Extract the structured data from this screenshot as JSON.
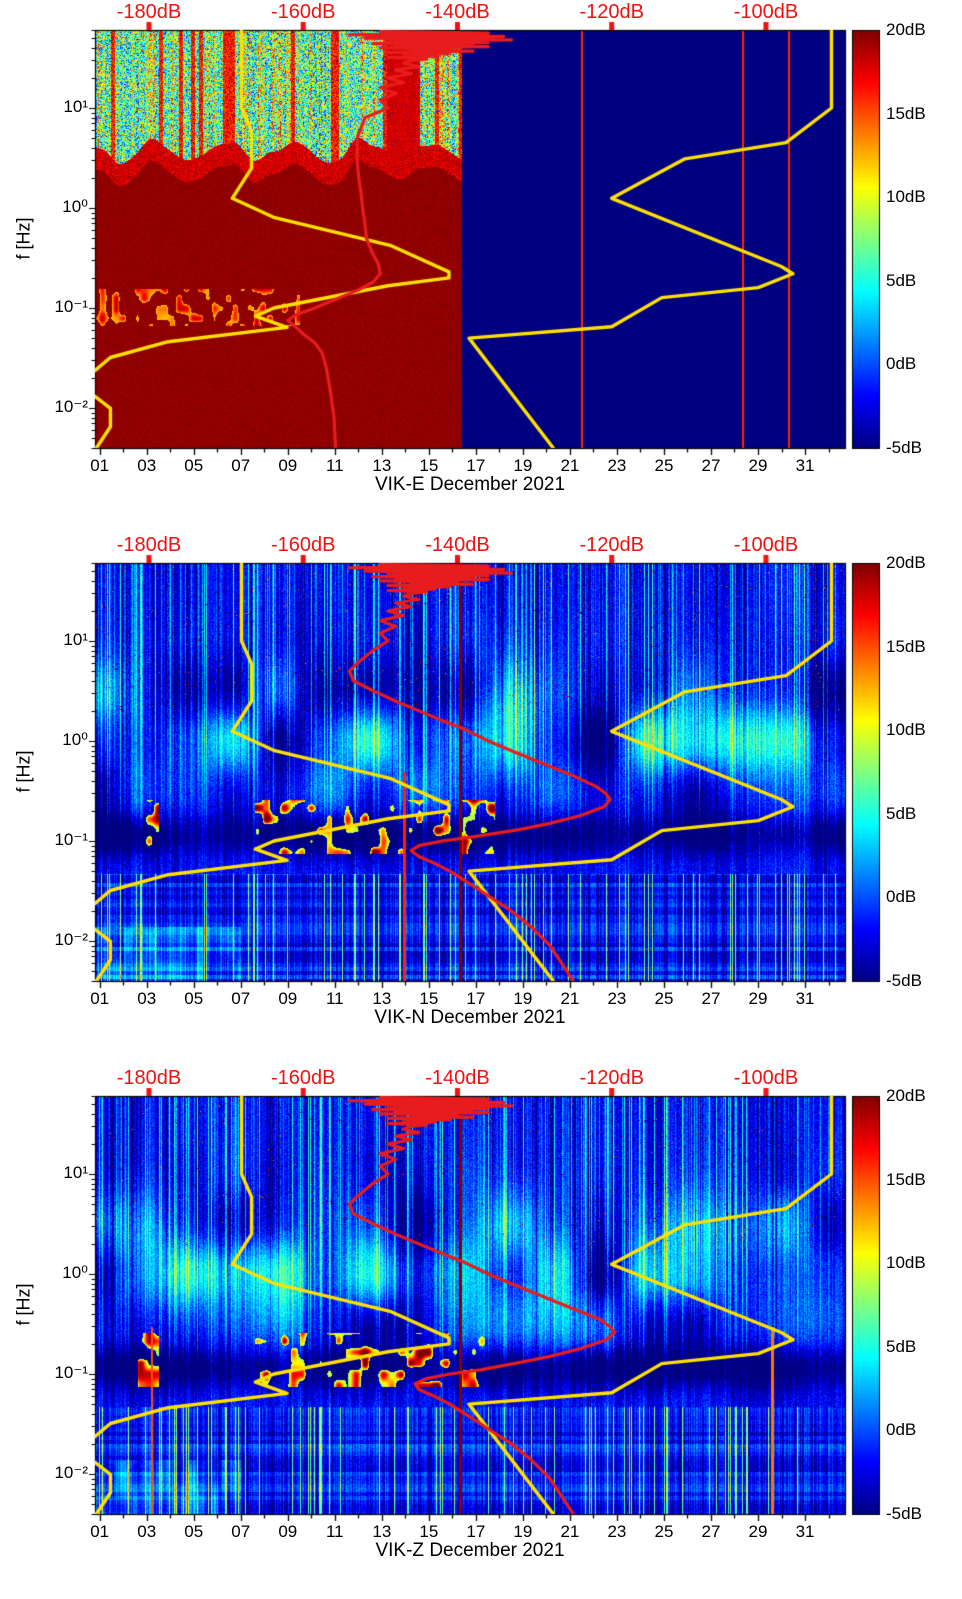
{
  "chart_data": {
    "type": "heatmap",
    "description": "Seismic power spectral density spectrograms (probability-density style) for station VIK, three components, with Peterson NLNM/NHNM reference curves (yellow) and station median PSD (red) plotted against the top dB axis.",
    "panels": [
      {
        "station": "VIK-E",
        "xlabel": "VIK-E December 2021",
        "style": "clipped",
        "seed": 11,
        "split_day": 16.38,
        "thin_lines": [
          {
            "day": 21.5,
            "db": 16
          },
          {
            "day": 28.35,
            "db": 16
          },
          {
            "day": 30.3,
            "db": 16
          }
        ]
      },
      {
        "station": "VIK-N",
        "xlabel": "VIK-N December 2021",
        "style": "quiet",
        "seed": 22,
        "thin_lines": [
          {
            "day": 16.33,
            "db": 20
          },
          {
            "day": 13.95,
            "db": 16,
            "fmax": 0.5
          }
        ]
      },
      {
        "station": "VIK-Z",
        "xlabel": "VIK-Z December 2021",
        "style": "quiet",
        "seed": 33,
        "thin_lines": [
          {
            "day": 16.33,
            "db": 20
          },
          {
            "day": 3.2,
            "db": 15,
            "fmax": 0.3
          },
          {
            "day": 29.6,
            "db": 14,
            "fmax": 0.3
          }
        ]
      }
    ],
    "x_axis": {
      "unit": "day of month (December 2021)",
      "range": [
        0.8,
        32.7
      ],
      "tick_days": [
        1,
        3,
        5,
        7,
        9,
        11,
        13,
        15,
        17,
        19,
        21,
        23,
        25,
        27,
        29,
        31
      ],
      "tick_labels": [
        "01",
        "03",
        "05",
        "07",
        "09",
        "11",
        "13",
        "15",
        "17",
        "19",
        "21",
        "23",
        "25",
        "27",
        "29",
        "31"
      ]
    },
    "y_axis": {
      "label": "f [Hz]",
      "unit": "Hz",
      "scale": "log",
      "log_range": [
        -2.4,
        1.78
      ],
      "tick_values": [
        10,
        1,
        0.1,
        0.01
      ],
      "tick_labels": [
        "10¹",
        "10⁰",
        "10⁻¹",
        "10⁻²"
      ]
    },
    "top_axis": {
      "unit": "dB (PSD rel. 1 (m/s²)²/Hz)",
      "range": [
        -187,
        -89.75
      ],
      "text_color": "#f01212",
      "tick_values": [
        -180,
        -160,
        -140,
        -120,
        -100
      ],
      "tick_labels": [
        "-180dB",
        "-160dB",
        "-140dB",
        "-120dB",
        "-100dB"
      ]
    },
    "colorbar": {
      "colormap": "jet",
      "range": [
        -5,
        20
      ],
      "tick_values": [
        20,
        15,
        10,
        5,
        0,
        -5
      ],
      "tick_labels": [
        "20dB",
        "15dB",
        "10dB",
        "5dB",
        "0dB",
        "-5dB"
      ]
    },
    "overlays": {
      "nlnm": {
        "name": "Peterson New Low Noise Model",
        "color": "#ffe100",
        "points": [
          [
            60,
            -168
          ],
          [
            10,
            -168
          ],
          [
            5.9,
            -166.7
          ],
          [
            2.5,
            -166.7
          ],
          [
            1.25,
            -169.2
          ],
          [
            0.8,
            -163.7
          ],
          [
            0.42,
            -148.6
          ],
          [
            0.23,
            -141.1
          ],
          [
            0.2,
            -141.1
          ],
          [
            0.167,
            -149
          ],
          [
            0.1,
            -163.8
          ],
          [
            0.083,
            -166.2
          ],
          [
            0.064,
            -162.1
          ],
          [
            0.046,
            -177.5
          ],
          [
            0.032,
            -185
          ],
          [
            0.022,
            -187.5
          ],
          [
            0.014,
            -187.5
          ],
          [
            0.0099,
            -185
          ],
          [
            0.0065,
            -185
          ],
          [
            0.004,
            -186.8
          ]
        ]
      },
      "nhnm": {
        "name": "Peterson New High Noise Model",
        "color": "#ffe100",
        "points": [
          [
            60,
            -91.5
          ],
          [
            10,
            -91.5
          ],
          [
            4.5,
            -97.4
          ],
          [
            3.1,
            -110.5
          ],
          [
            1.25,
            -120
          ],
          [
            0.26,
            -98
          ],
          [
            0.22,
            -96.5
          ],
          [
            0.16,
            -101
          ],
          [
            0.127,
            -113.5
          ],
          [
            0.065,
            -120
          ],
          [
            0.05,
            -138.5
          ],
          [
            0.004,
            -127.6
          ]
        ]
      },
      "median_color": "#e81c1c",
      "median_scribble": [
        [
          58,
          -150
        ],
        [
          56,
          -136
        ],
        [
          54,
          -154
        ],
        [
          52,
          -134
        ],
        [
          50,
          -152
        ],
        [
          48,
          -133
        ],
        [
          46,
          -149
        ],
        [
          45,
          -136
        ],
        [
          44,
          -151
        ],
        [
          43,
          -138
        ],
        [
          42,
          -148
        ],
        [
          41,
          -136
        ],
        [
          40,
          -150
        ],
        [
          39,
          -140
        ],
        [
          38,
          -146
        ],
        [
          37,
          -138
        ],
        [
          36,
          -149
        ],
        [
          35,
          -141
        ],
        [
          34,
          -147
        ],
        [
          33,
          -143
        ],
        [
          32,
          -149
        ],
        [
          31,
          -144
        ],
        [
          30,
          -146
        ],
        [
          28,
          -147
        ],
        [
          26,
          -145
        ],
        [
          24,
          -148
        ],
        [
          22,
          -146
        ],
        [
          20,
          -149
        ],
        [
          18,
          -147
        ],
        [
          16,
          -150
        ],
        [
          14,
          -148
        ],
        [
          12,
          -150
        ],
        [
          10,
          -149
        ]
      ],
      "medians": {
        "VIK-E": [
          [
            8,
            -152
          ],
          [
            5,
            -153
          ],
          [
            3,
            -153
          ],
          [
            2,
            -152.8
          ],
          [
            1.4,
            -152.5
          ],
          [
            1,
            -152.3
          ],
          [
            0.7,
            -152
          ],
          [
            0.5,
            -151.8
          ],
          [
            0.35,
            -151
          ],
          [
            0.28,
            -150.3
          ],
          [
            0.22,
            -150
          ],
          [
            0.18,
            -151
          ],
          [
            0.15,
            -153
          ],
          [
            0.12,
            -156
          ],
          [
            0.1,
            -158.5
          ],
          [
            0.085,
            -161
          ],
          [
            0.075,
            -162
          ],
          [
            0.065,
            -161
          ],
          [
            0.055,
            -160
          ],
          [
            0.045,
            -158.5
          ],
          [
            0.035,
            -157.5
          ],
          [
            0.025,
            -157
          ],
          [
            0.015,
            -156.5
          ],
          [
            0.008,
            -156
          ],
          [
            0.004,
            -155.8
          ]
        ],
        "VIK-N": [
          [
            8,
            -151
          ],
          [
            6,
            -153
          ],
          [
            5,
            -154
          ],
          [
            4,
            -153.5
          ],
          [
            3.2,
            -151
          ],
          [
            2.5,
            -148
          ],
          [
            2,
            -145
          ],
          [
            1.6,
            -142
          ],
          [
            1.3,
            -139
          ],
          [
            1,
            -136
          ],
          [
            0.8,
            -133
          ],
          [
            0.6,
            -129
          ],
          [
            0.45,
            -125
          ],
          [
            0.35,
            -122
          ],
          [
            0.3,
            -120.8
          ],
          [
            0.26,
            -120.2
          ],
          [
            0.22,
            -121
          ],
          [
            0.18,
            -124
          ],
          [
            0.15,
            -128
          ],
          [
            0.13,
            -132
          ],
          [
            0.11,
            -138
          ],
          [
            0.1,
            -142
          ],
          [
            0.09,
            -145
          ],
          [
            0.08,
            -146
          ],
          [
            0.07,
            -145
          ],
          [
            0.06,
            -143
          ],
          [
            0.05,
            -141
          ],
          [
            0.04,
            -139
          ],
          [
            0.03,
            -136.5
          ],
          [
            0.02,
            -133
          ],
          [
            0.014,
            -130.5
          ],
          [
            0.009,
            -128
          ],
          [
            0.006,
            -126.5
          ],
          [
            0.004,
            -125
          ]
        ],
        "VIK-Z": [
          [
            8,
            -151
          ],
          [
            6,
            -153
          ],
          [
            5,
            -154
          ],
          [
            4,
            -153.5
          ],
          [
            3.2,
            -151
          ],
          [
            2.5,
            -148
          ],
          [
            2,
            -145
          ],
          [
            1.6,
            -142
          ],
          [
            1.3,
            -139
          ],
          [
            1,
            -136
          ],
          [
            0.8,
            -133
          ],
          [
            0.6,
            -129
          ],
          [
            0.45,
            -125
          ],
          [
            0.35,
            -121.5
          ],
          [
            0.3,
            -120.3
          ],
          [
            0.26,
            -119.6
          ],
          [
            0.22,
            -120.7
          ],
          [
            0.18,
            -124
          ],
          [
            0.15,
            -128
          ],
          [
            0.13,
            -132
          ],
          [
            0.11,
            -137
          ],
          [
            0.1,
            -141
          ],
          [
            0.09,
            -144
          ],
          [
            0.08,
            -145.5
          ],
          [
            0.07,
            -145
          ],
          [
            0.06,
            -143
          ],
          [
            0.05,
            -141
          ],
          [
            0.04,
            -139
          ],
          [
            0.03,
            -136.5
          ],
          [
            0.02,
            -133
          ],
          [
            0.014,
            -130.5
          ],
          [
            0.009,
            -128
          ],
          [
            0.006,
            -126.5
          ],
          [
            0.004,
            -125
          ]
        ]
      }
    },
    "heat_styles": {
      "quiet": {
        "base_db": -2,
        "microseism_band_log_center": -0.93,
        "microseism_dark_db": 5.5,
        "hot_day_ranges": [
          [
            7.6,
            17.8
          ],
          [
            2.6,
            3.5
          ]
        ],
        "lowf_log_limit": -1.32
      },
      "clipped": {
        "left_db": 19.2,
        "right_db": -5,
        "noisy_top_log_boundary": 0.36,
        "speckle_band_log": [
          -1.18,
          -0.8
        ],
        "speckle_days": [
          1,
          9.5
        ],
        "maroon_days": [
          13.2,
          14.6
        ]
      }
    }
  }
}
